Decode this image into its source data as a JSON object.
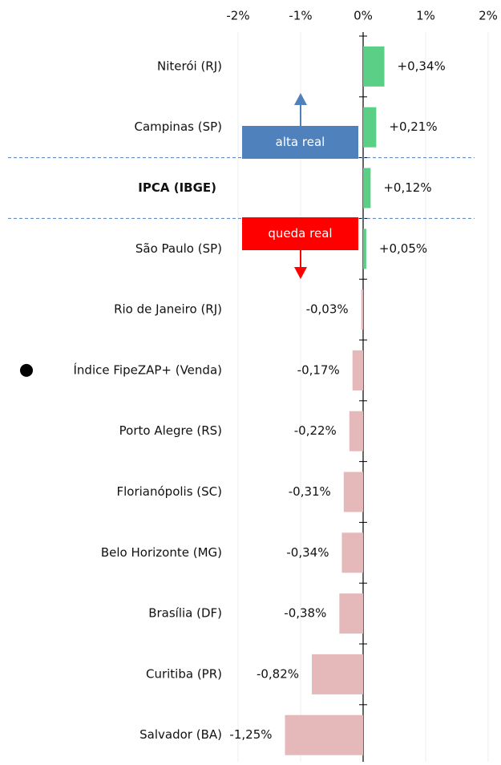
{
  "chart_data": {
    "type": "bar",
    "orientation": "horizontal",
    "categories": [
      "Niterói (RJ)",
      "Campinas (SP)",
      "IPCA (IBGE)",
      "São Paulo (SP)",
      "Rio de Janeiro (RJ)",
      "Índice FipeZAP+ (Venda)",
      "Porto Alegre (RS)",
      "Florianópolis (SC)",
      "Belo Horizonte (MG)",
      "Brasília (DF)",
      "Curitiba (PR)",
      "Salvador (BA)"
    ],
    "values": [
      0.34,
      0.21,
      0.12,
      0.05,
      -0.03,
      -0.17,
      -0.22,
      -0.31,
      -0.34,
      -0.38,
      -0.82,
      -1.25
    ],
    "value_labels": [
      "+0,34%",
      "+0,21%",
      "+0,12%",
      "+0,05%",
      "-0,03%",
      "-0,17%",
      "-0,22%",
      "-0,31%",
      "-0,34%",
      "-0,38%",
      "-0,82%",
      "-1,25%"
    ],
    "positive_color": "#5ccf86",
    "negative_color": "#e5b8b9",
    "xlim": [
      -2,
      2
    ],
    "xticks": [
      {
        "value": -2,
        "label": "-2%"
      },
      {
        "value": -1,
        "label": "-1%"
      },
      {
        "value": 0,
        "label": "0%"
      },
      {
        "value": 1,
        "label": "1%"
      },
      {
        "value": 2,
        "label": "2%"
      }
    ],
    "grid": true,
    "bold_categories": [
      "IPCA (IBGE)"
    ],
    "marked_categories": [
      "Índice FipeZAP+ (Venda)"
    ],
    "annotations": [
      {
        "text": "alta real",
        "color": "#4f81bd",
        "direction": "up"
      },
      {
        "text": "queda real",
        "color": "#ff0000",
        "direction": "down"
      }
    ]
  }
}
